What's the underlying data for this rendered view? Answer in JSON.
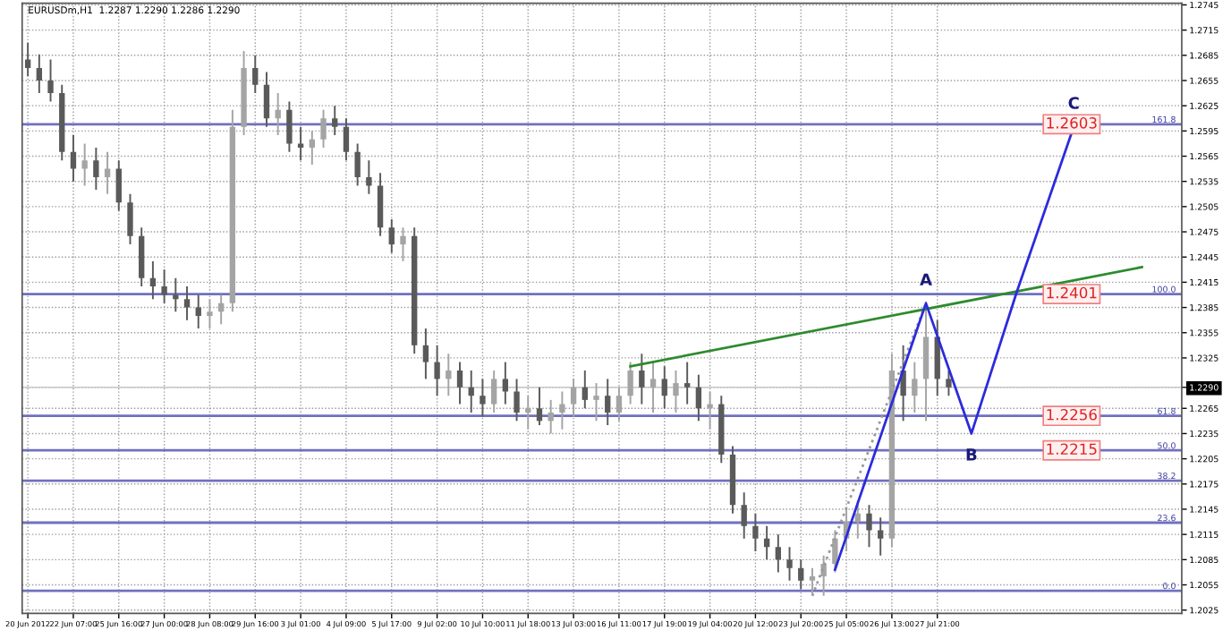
{
  "chart_data": {
    "type": "candlestick",
    "title": "EURUSDm,H1  1.2287 1.2290 1.2286 1.2290",
    "colors": [
      "#5a5a5a",
      "#5a5a5a",
      "#5a5a5a",
      "#5a5a5a",
      "#5a5a5a",
      "#a4a4a4",
      "#5a5a5a",
      "#a4a4a4",
      "#5a5a5a",
      "#5a5a5a",
      "#5a5a5a",
      "#5a5a5a",
      "#5a5a5a",
      "#5a5a5a",
      "#5a5a5a",
      "#5a5a5a",
      "#a4a4a4",
      "#a4a4a4",
      "#a4a4a4",
      "#a4a4a4",
      "#5a5a5a",
      "#5a5a5a",
      "#a4a4a4",
      "#5a5a5a",
      "#5a5a5a",
      "#a4a4a4",
      "#a4a4a4",
      "#5a5a5a",
      "#5a5a5a",
      "#5a5a5a",
      "#5a5a5a",
      "#5a5a5a",
      "#5a5a5a",
      "#a4a4a4",
      "#5a5a5a",
      "#5a5a5a",
      "#5a5a5a",
      "#a4a4a4",
      "#5a5a5a",
      "#5a5a5a",
      "#5a5a5a",
      "#a4a4a4",
      "#5a5a5a",
      "#5a5a5a",
      "#a4a4a4",
      "#5a5a5a",
      "#a4a4a4",
      "#a4a4a4",
      "#a4a4a4",
      "#5a5a5a",
      "#a4a4a4",
      "#5a5a5a",
      "#a4a4a4",
      "#a4a4a4",
      "#5a5a5a",
      "#a4a4a4",
      "#5a5a5a",
      "#a4a4a4",
      "#5a5a5a",
      "#5a5a5a",
      "#a4a4a4",
      "#5a5a5a",
      "#5a5a5a",
      "#5a5a5a",
      "#5a5a5a",
      "#5a5a5a",
      "#5a5a5a",
      "#5a5a5a",
      "#5a5a5a",
      "#a4a4a4",
      "#a4a4a4",
      "#a4a4a4",
      "#a4a4a4",
      "#a4a4a4",
      "#5a5a5a",
      "#5a5a5a",
      "#a4a4a4",
      "#5a5a5a",
      "#a4a4a4",
      "#a4a4a4",
      "#5a5a5a",
      "#5a5a5a",
      null,
      null,
      null,
      null,
      null,
      null,
      null,
      null,
      null,
      null,
      null,
      null,
      null,
      null,
      null,
      null,
      null,
      null,
      null,
      null
    ],
    "categories": [
      "20 Jun 2012",
      null,
      null,
      null,
      "22 Jun 07:00",
      null,
      null,
      null,
      "25 Jun 16:00",
      null,
      null,
      null,
      "27 Jun 00:00",
      null,
      null,
      null,
      "28 Jun 08:00",
      null,
      null,
      null,
      "29 Jun 16:00",
      null,
      null,
      null,
      "3 Jul 01:00",
      null,
      null,
      null,
      "4 Jul 09:00",
      null,
      null,
      null,
      "5 Jul 17:00",
      null,
      null,
      null,
      "9 Jul 02:00",
      null,
      null,
      null,
      "10 Jul 10:00",
      null,
      null,
      null,
      "11 Jul 18:00",
      null,
      null,
      null,
      "13 Jul 03:00",
      null,
      null,
      null,
      "16 Jul 11:00",
      null,
      null,
      null,
      "17 Jul 19:00",
      null,
      null,
      null,
      "19 Jul 04:00",
      null,
      null,
      null,
      "20 Jul 12:00",
      null,
      null,
      null,
      "23 Jul 20:00",
      null,
      null,
      null,
      "25 Jul 05:00",
      null,
      null,
      null,
      "26 Jul 13:00",
      null,
      null,
      null,
      "27 Jul 21:00",
      null,
      null,
      null,
      null,
      null,
      null,
      null,
      null,
      null,
      null,
      null,
      null,
      null,
      null,
      null,
      null,
      null,
      null,
      null,
      null,
      null
    ],
    "ohlc": [
      [
        1.268,
        1.27,
        1.266,
        1.267
      ],
      [
        1.267,
        1.2686,
        1.264,
        1.2655
      ],
      [
        1.2655,
        1.268,
        1.263,
        1.264
      ],
      [
        1.264,
        1.265,
        1.256,
        1.257
      ],
      [
        1.257,
        1.259,
        1.2535,
        1.255
      ],
      [
        1.255,
        1.258,
        1.253,
        1.256
      ],
      [
        1.256,
        1.2575,
        1.2525,
        1.254
      ],
      [
        1.254,
        1.257,
        1.252,
        1.255
      ],
      [
        1.255,
        1.256,
        1.25,
        1.251
      ],
      [
        1.251,
        1.252,
        1.246,
        1.247
      ],
      [
        1.247,
        1.248,
        1.241,
        1.242
      ],
      [
        1.242,
        1.244,
        1.2395,
        1.241
      ],
      [
        1.241,
        1.243,
        1.239,
        1.24
      ],
      [
        1.24,
        1.242,
        1.238,
        1.2395
      ],
      [
        1.2395,
        1.241,
        1.237,
        1.2385
      ],
      [
        1.2385,
        1.24,
        1.236,
        1.2375
      ],
      [
        1.2375,
        1.2395,
        1.236,
        1.238
      ],
      [
        1.238,
        1.24,
        1.2365,
        1.239
      ],
      [
        1.239,
        1.262,
        1.238,
        1.26
      ],
      [
        1.26,
        1.269,
        1.259,
        1.267
      ],
      [
        1.267,
        1.2685,
        1.264,
        1.265
      ],
      [
        1.265,
        1.2665,
        1.26,
        1.261
      ],
      [
        1.261,
        1.264,
        1.259,
        1.262
      ],
      [
        1.262,
        1.263,
        1.257,
        1.258
      ],
      [
        1.258,
        1.26,
        1.256,
        1.2575
      ],
      [
        1.2575,
        1.2595,
        1.2555,
        1.2585
      ],
      [
        1.2585,
        1.262,
        1.2575,
        1.261
      ],
      [
        1.261,
        1.2625,
        1.259,
        1.26
      ],
      [
        1.26,
        1.261,
        1.256,
        1.257
      ],
      [
        1.257,
        1.258,
        1.253,
        1.254
      ],
      [
        1.254,
        1.256,
        1.252,
        1.253
      ],
      [
        1.253,
        1.2545,
        1.247,
        1.248
      ],
      [
        1.248,
        1.249,
        1.245,
        1.246
      ],
      [
        1.246,
        1.248,
        1.244,
        1.247
      ],
      [
        1.247,
        1.248,
        1.233,
        1.234
      ],
      [
        1.234,
        1.236,
        1.23,
        1.232
      ],
      [
        1.232,
        1.234,
        1.228,
        1.23
      ],
      [
        1.23,
        1.233,
        1.228,
        1.231
      ],
      [
        1.231,
        1.232,
        1.227,
        1.229
      ],
      [
        1.229,
        1.231,
        1.226,
        1.228
      ],
      [
        1.228,
        1.23,
        1.2255,
        1.227
      ],
      [
        1.227,
        1.231,
        1.226,
        1.23
      ],
      [
        1.23,
        1.232,
        1.227,
        1.2285
      ],
      [
        1.2285,
        1.23,
        1.225,
        1.226
      ],
      [
        1.226,
        1.228,
        1.224,
        1.2265
      ],
      [
        1.2265,
        1.229,
        1.2245,
        1.225
      ],
      [
        1.225,
        1.2275,
        1.2235,
        1.226
      ],
      [
        1.226,
        1.2285,
        1.224,
        1.227
      ],
      [
        1.227,
        1.23,
        1.2255,
        1.229
      ],
      [
        1.229,
        1.231,
        1.2265,
        1.2275
      ],
      [
        1.2275,
        1.2295,
        1.225,
        1.228
      ],
      [
        1.228,
        1.23,
        1.2245,
        1.226
      ],
      [
        1.226,
        1.229,
        1.225,
        1.228
      ],
      [
        1.228,
        1.232,
        1.227,
        1.231
      ],
      [
        1.231,
        1.233,
        1.227,
        1.229
      ],
      [
        1.229,
        1.232,
        1.226,
        1.23
      ],
      [
        1.23,
        1.2315,
        1.2265,
        1.228
      ],
      [
        1.228,
        1.231,
        1.226,
        1.2295
      ],
      [
        1.2295,
        1.232,
        1.227,
        1.229
      ],
      [
        1.229,
        1.2305,
        1.225,
        1.2265
      ],
      [
        1.2265,
        1.2285,
        1.224,
        1.227
      ],
      [
        1.227,
        1.228,
        1.22,
        1.221
      ],
      [
        1.221,
        1.222,
        1.214,
        1.215
      ],
      [
        1.215,
        1.2165,
        1.211,
        1.2125
      ],
      [
        1.2125,
        1.214,
        1.2095,
        1.211
      ],
      [
        1.211,
        1.2125,
        1.2085,
        1.21
      ],
      [
        1.21,
        1.2115,
        1.207,
        1.2085
      ],
      [
        1.2085,
        1.21,
        1.206,
        1.2075
      ],
      [
        1.2075,
        1.2085,
        1.205,
        1.206
      ],
      [
        1.206,
        1.2075,
        1.2045,
        1.2065
      ],
      [
        1.2065,
        1.209,
        1.2042,
        1.208
      ],
      [
        1.208,
        1.212,
        1.207,
        1.211
      ],
      [
        1.211,
        1.2145,
        1.2095,
        1.213
      ],
      [
        1.213,
        1.2155,
        1.211,
        1.214
      ],
      [
        1.214,
        1.215,
        1.21,
        1.212
      ],
      [
        1.212,
        1.2135,
        1.209,
        1.211
      ],
      [
        1.211,
        1.233,
        1.21,
        1.231
      ],
      [
        1.231,
        1.234,
        1.225,
        1.228
      ],
      [
        1.228,
        1.232,
        1.226,
        1.23
      ],
      [
        1.23,
        1.2392,
        1.225,
        1.235
      ],
      [
        1.235,
        1.237,
        1.228,
        1.23
      ],
      [
        1.23,
        1.231,
        1.228,
        1.229
      ],
      null,
      null,
      null,
      null,
      null,
      null,
      null,
      null,
      null,
      null,
      null,
      null,
      null,
      null,
      null,
      null,
      null,
      null,
      null,
      null
    ],
    "series": [
      {
        "type": "line",
        "color": "#2e8b2e",
        "values": [
          null,
          null,
          null,
          null,
          null,
          null,
          null,
          null,
          null,
          null,
          null,
          null,
          null,
          null,
          null,
          null,
          null,
          null,
          null,
          null,
          null,
          null,
          null,
          null,
          null,
          null,
          null,
          null,
          null,
          null,
          null,
          null,
          null,
          null,
          null,
          null,
          null,
          null,
          null,
          null,
          null,
          null,
          null,
          null,
          null,
          null,
          null,
          null,
          null,
          null,
          null,
          null,
          null,
          1.2315,
          null,
          null,
          null,
          null,
          null,
          null,
          null,
          null,
          null,
          null,
          null,
          null,
          null,
          null,
          null,
          null,
          null,
          null,
          null,
          null,
          null,
          null,
          null,
          null,
          null,
          null,
          null,
          null,
          null,
          null,
          null,
          null,
          null,
          null,
          null,
          null,
          null,
          null,
          null,
          null,
          null,
          null,
          null,
          null,
          1.2433,
          null,
          null,
          null
        ]
      },
      {
        "type": "line",
        "color": "#999999",
        "line_style": "dotted",
        "values": [
          null,
          null,
          null,
          null,
          null,
          null,
          null,
          null,
          null,
          null,
          null,
          null,
          null,
          null,
          null,
          null,
          null,
          null,
          null,
          null,
          null,
          null,
          null,
          null,
          null,
          null,
          null,
          null,
          null,
          null,
          null,
          null,
          null,
          null,
          null,
          null,
          null,
          null,
          null,
          null,
          null,
          null,
          null,
          null,
          null,
          null,
          null,
          null,
          null,
          null,
          null,
          null,
          null,
          null,
          null,
          null,
          null,
          null,
          null,
          null,
          null,
          null,
          null,
          null,
          null,
          null,
          null,
          null,
          null,
          1.2042,
          null,
          null,
          null,
          null,
          null,
          null,
          null,
          null,
          null,
          1.239,
          null,
          null,
          null,
          null,
          null,
          null,
          null,
          null,
          null,
          null,
          null,
          null,
          null,
          null,
          null,
          null,
          null,
          null,
          null,
          null,
          null,
          null
        ]
      },
      {
        "type": "line",
        "color": "#2b2bdc",
        "values": [
          null,
          null,
          null,
          null,
          null,
          null,
          null,
          null,
          null,
          null,
          null,
          null,
          null,
          null,
          null,
          null,
          null,
          null,
          null,
          null,
          null,
          null,
          null,
          null,
          null,
          null,
          null,
          null,
          null,
          null,
          null,
          null,
          null,
          null,
          null,
          null,
          null,
          null,
          null,
          null,
          null,
          null,
          null,
          null,
          null,
          null,
          null,
          null,
          null,
          null,
          null,
          null,
          null,
          null,
          null,
          null,
          null,
          null,
          null,
          null,
          null,
          null,
          null,
          null,
          null,
          null,
          null,
          null,
          null,
          null,
          null,
          1.2073,
          null,
          null,
          null,
          null,
          null,
          null,
          null,
          1.239,
          null,
          null,
          null,
          1.2235,
          null,
          null,
          null,
          1.2404,
          null,
          null,
          null,
          null,
          1.26,
          null,
          null,
          null,
          null,
          null,
          null,
          null,
          null,
          null
        ],
        "value_labels": [
          null,
          null,
          null,
          null,
          null,
          null,
          null,
          null,
          null,
          null,
          null,
          null,
          null,
          null,
          null,
          null,
          null,
          null,
          null,
          null,
          null,
          null,
          null,
          null,
          null,
          null,
          null,
          null,
          null,
          null,
          null,
          null,
          null,
          null,
          null,
          null,
          null,
          null,
          null,
          null,
          null,
          null,
          null,
          null,
          null,
          null,
          null,
          null,
          null,
          null,
          null,
          null,
          null,
          null,
          null,
          null,
          null,
          null,
          null,
          null,
          null,
          null,
          null,
          null,
          null,
          null,
          null,
          null,
          null,
          null,
          null,
          null,
          null,
          null,
          null,
          null,
          null,
          null,
          null,
          "A",
          null,
          null,
          null,
          "B",
          null,
          null,
          null,
          null,
          null,
          null,
          null,
          null,
          "C",
          null,
          null,
          null,
          null,
          null,
          null,
          null,
          null,
          null
        ]
      }
    ],
    "ref_lines": [
      {
        "axis": "y",
        "value": 1.229,
        "color": "#c8c8c8"
      },
      {
        "axis": "y",
        "value": 1.2603,
        "label": "1.2603",
        "color": "#7070c0"
      },
      {
        "axis": "y",
        "value": 1.2401,
        "label": "1.2401",
        "color": "#7070c0"
      },
      {
        "axis": "y",
        "value": 1.2256,
        "label": "1.2256",
        "color": "#7070c0"
      },
      {
        "axis": "y",
        "value": 1.2215,
        "label": "1.2215",
        "color": "#7070c0"
      },
      {
        "axis": "y",
        "value": 1.2179,
        "color": "#7070c0"
      },
      {
        "axis": "y",
        "value": 1.2129,
        "color": "#7070c0"
      },
      {
        "axis": "y",
        "value": 1.2048,
        "color": "#7070c0"
      }
    ],
    "annotations": [
      {
        "text": "161.8",
        "y": 1.2603
      },
      {
        "text": "100.0",
        "y": 1.2401
      },
      {
        "text": "61.8",
        "y": 1.2256
      },
      {
        "text": "50.0",
        "y": 1.2215
      },
      {
        "text": "38.2",
        "y": 1.2179
      },
      {
        "text": "23.6",
        "y": 1.2129
      },
      {
        "text": "0.0",
        "y": 1.2048
      }
    ],
    "ylim": [
      1.2021,
      1.2747
    ],
    "yticks": [
      {
        "value": 1.2025,
        "label": "1.2025"
      },
      {
        "value": 1.2055,
        "label": "1.2055"
      },
      {
        "value": 1.2085,
        "label": "1.2085"
      },
      {
        "value": 1.2115,
        "label": "1.2115"
      },
      {
        "value": 1.2145,
        "label": "1.2145"
      },
      {
        "value": 1.2175,
        "label": "1.2175"
      },
      {
        "value": 1.2205,
        "label": "1.2205"
      },
      {
        "value": 1.2235,
        "label": "1.2235"
      },
      {
        "value": 1.2265,
        "label": "1.2265"
      },
      {
        "value": 1.229,
        "label": "1.2290"
      },
      {
        "value": 1.2325,
        "label": "1.2325"
      },
      {
        "value": 1.2355,
        "label": "1.2355"
      },
      {
        "value": 1.2385,
        "label": "1.2385"
      },
      {
        "value": 1.2415,
        "label": "1.2415"
      },
      {
        "value": 1.2445,
        "label": "1.2445"
      },
      {
        "value": 1.2475,
        "label": "1.2475"
      },
      {
        "value": 1.2505,
        "label": "1.2505"
      },
      {
        "value": 1.2535,
        "label": "1.2535"
      },
      {
        "value": 1.2565,
        "label": "1.2565"
      },
      {
        "value": 1.2595,
        "label": "1.2595"
      },
      {
        "value": 1.2625,
        "label": "1.2625"
      },
      {
        "value": 1.2655,
        "label": "1.2655"
      },
      {
        "value": 1.2685,
        "label": "1.2685"
      },
      {
        "value": 1.2715,
        "label": "1.2715"
      },
      {
        "value": 1.2745,
        "label": "1.2745"
      }
    ],
    "grid": true
  }
}
